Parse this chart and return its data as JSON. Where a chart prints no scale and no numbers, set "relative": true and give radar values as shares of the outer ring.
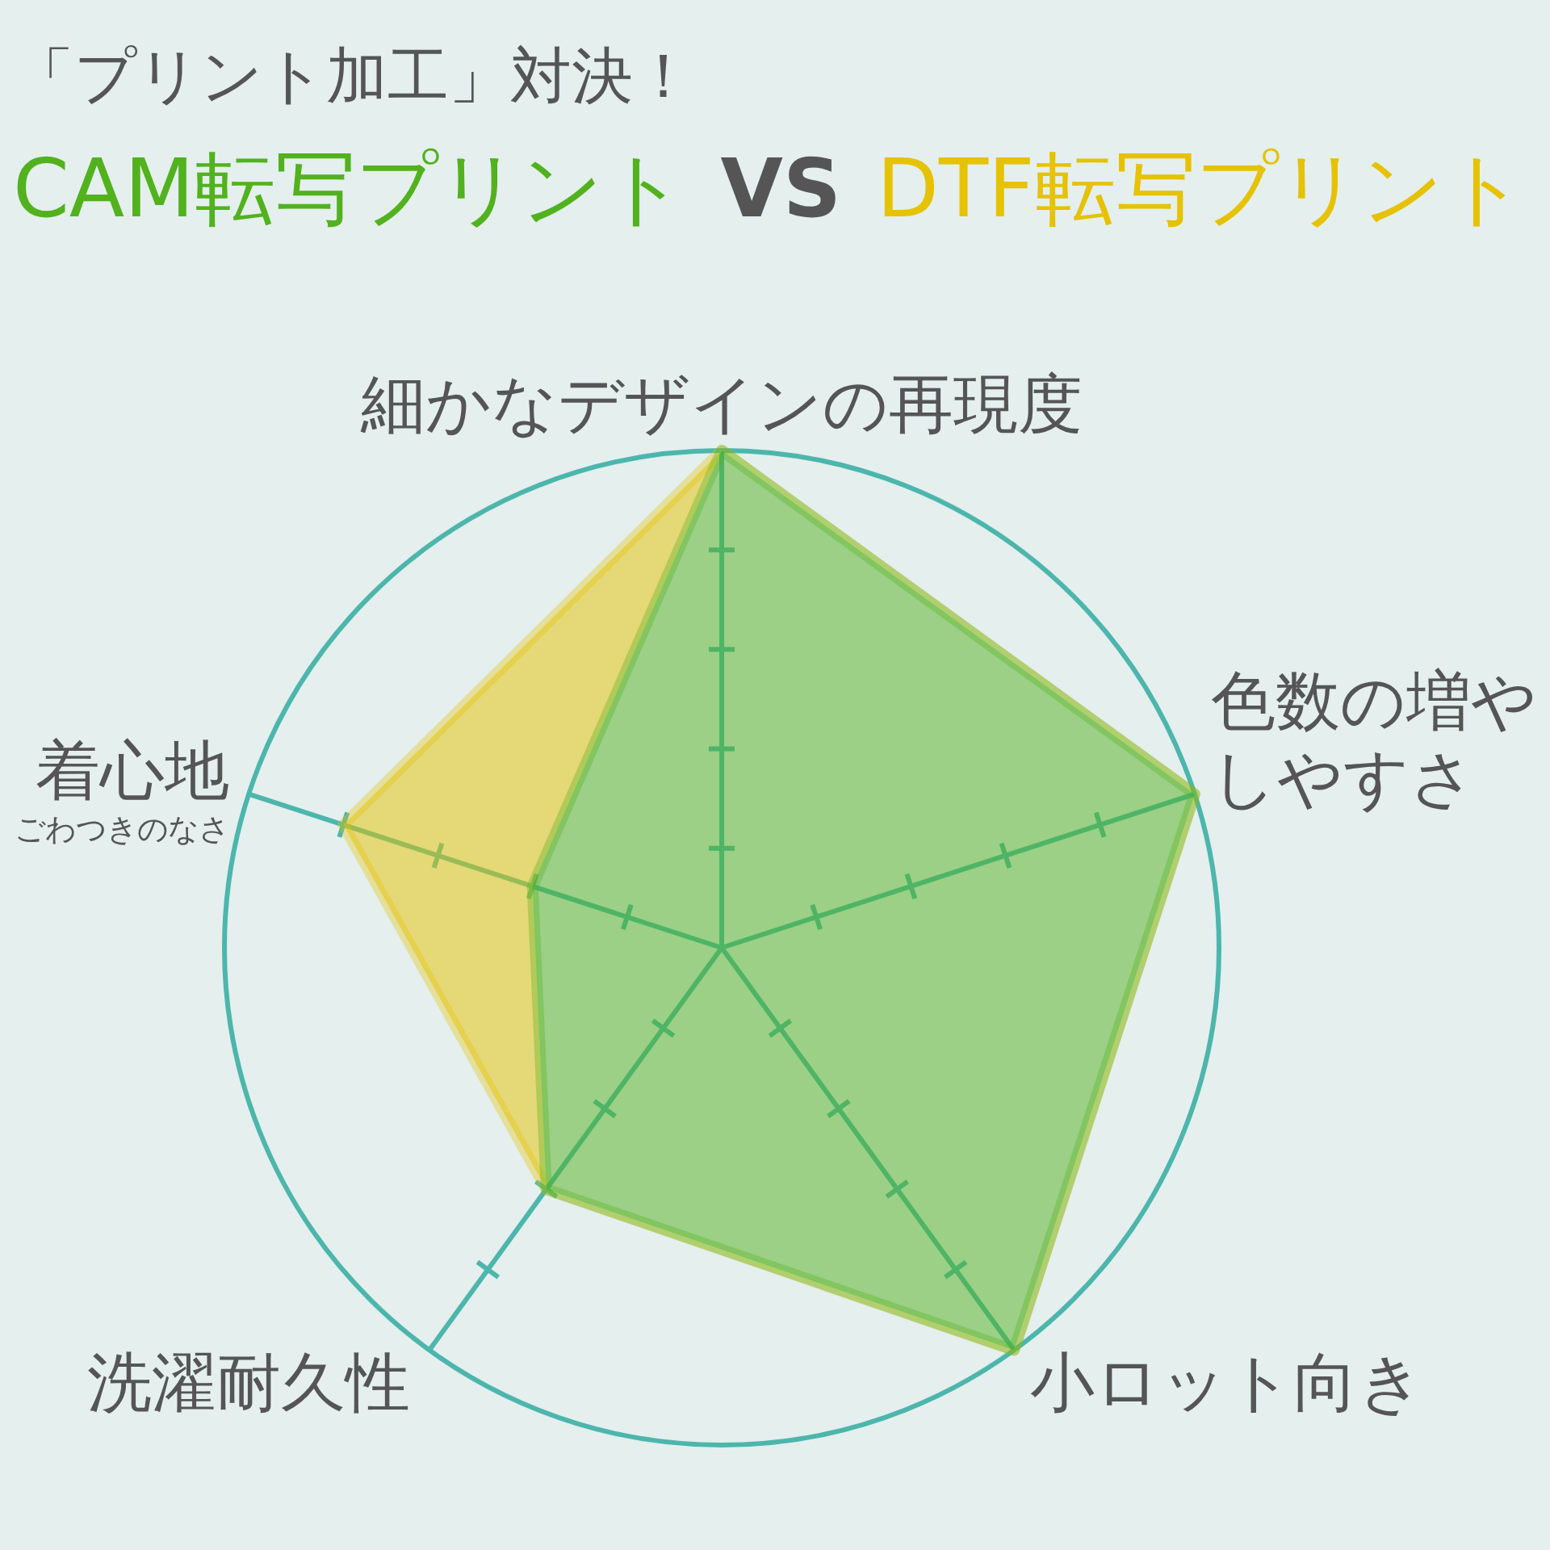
{
  "chart_data": {
    "type": "radar",
    "title": "「プリント加工」対決！",
    "subtitle": "VS",
    "legend": "top",
    "grid": true,
    "relative": true,
    "categories": [
      "細かなデザインの再現度",
      "色数の増やしやすさ",
      "小ロット向き",
      "洗濯耐久性",
      "着心地"
    ],
    "annotations": [
      {
        "text": "ごわつきのなさ",
        "x": "着心地"
      }
    ],
    "series": [
      {
        "name": "CAM転写プリント",
        "color": "#52b21e",
        "values": [
          1,
          1,
          1,
          0.6,
          0.4
        ]
      },
      {
        "name": "DTF転写プリント",
        "color": "#e6c200",
        "values": [
          1,
          1,
          1,
          0.6,
          0.8
        ]
      }
    ]
  }
}
